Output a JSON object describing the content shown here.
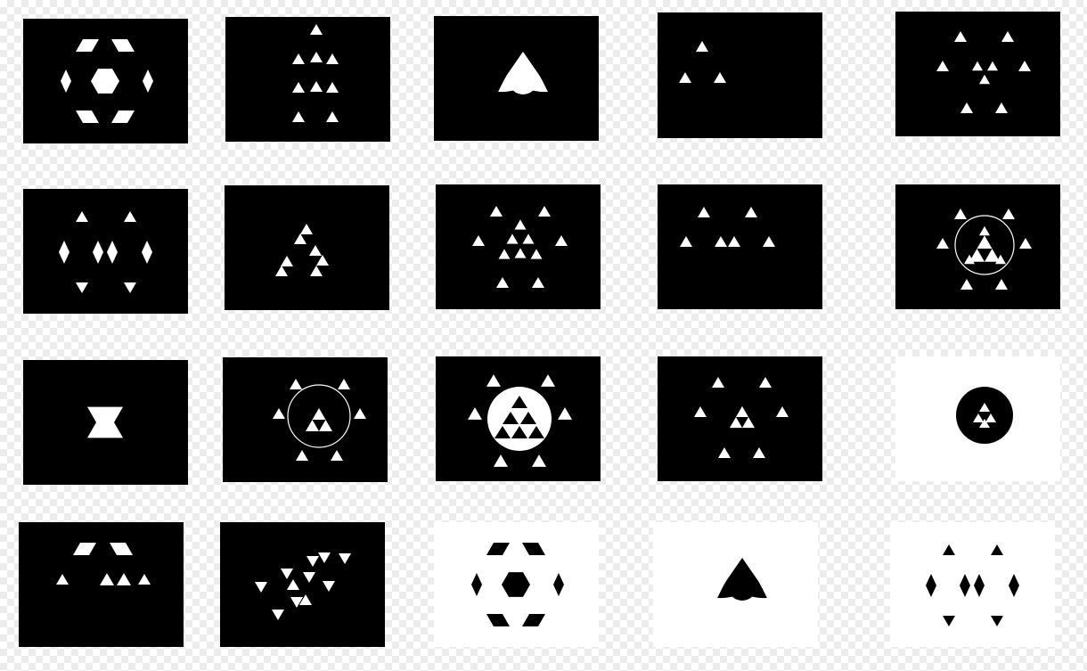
{
  "colors": {
    "dark_tile": "#000000",
    "light_tile": "#ffffff",
    "checker": "#ececec"
  },
  "gallery": {
    "tiles": [
      {
        "id": "rhombus-ring",
        "background": "black",
        "motif": "rhombus-ring"
      },
      {
        "id": "triangle-column",
        "background": "black",
        "motif": "triangle-column"
      },
      {
        "id": "rounded-trefoil",
        "background": "black",
        "motif": "rounded-trefoil"
      },
      {
        "id": "triangle-trio",
        "background": "black",
        "motif": "triangle-trio"
      },
      {
        "id": "hexagram-cluster",
        "background": "black",
        "motif": "hexagram-cluster"
      },
      {
        "id": "diamond-ring",
        "background": "black",
        "motif": "diamond-ring"
      },
      {
        "id": "stacked-pyramid",
        "background": "black",
        "motif": "stacked-pyramid"
      },
      {
        "id": "dense-triangle-ring",
        "background": "black",
        "motif": "dense-triangle-ring"
      },
      {
        "id": "triangle-row",
        "background": "black",
        "motif": "triangle-row"
      },
      {
        "id": "circled-triangles",
        "background": "black",
        "motif": "circled-triangles"
      },
      {
        "id": "star-of-david",
        "background": "black",
        "motif": "star-of-david"
      },
      {
        "id": "circled-triangles-outline",
        "background": "black",
        "motif": "circled-triangles-outline"
      },
      {
        "id": "disc-triangles",
        "background": "black",
        "motif": "disc-triangles"
      },
      {
        "id": "triangle-ring",
        "background": "black",
        "motif": "triangle-ring"
      },
      {
        "id": "dark-disc-triangles",
        "background": "white",
        "motif": "dark-disc-triangles"
      },
      {
        "id": "rhombus-trio",
        "background": "black",
        "motif": "rhombus-trio"
      },
      {
        "id": "scattered-triangles",
        "background": "black",
        "motif": "scattered-triangles"
      },
      {
        "id": "rhombus-ring-dark",
        "background": "white",
        "motif": "rhombus-ring"
      },
      {
        "id": "rounded-trefoil-dark",
        "background": "white",
        "motif": "rounded-trefoil"
      },
      {
        "id": "diamond-ring-dark",
        "background": "white",
        "motif": "diamond-ring"
      }
    ]
  }
}
